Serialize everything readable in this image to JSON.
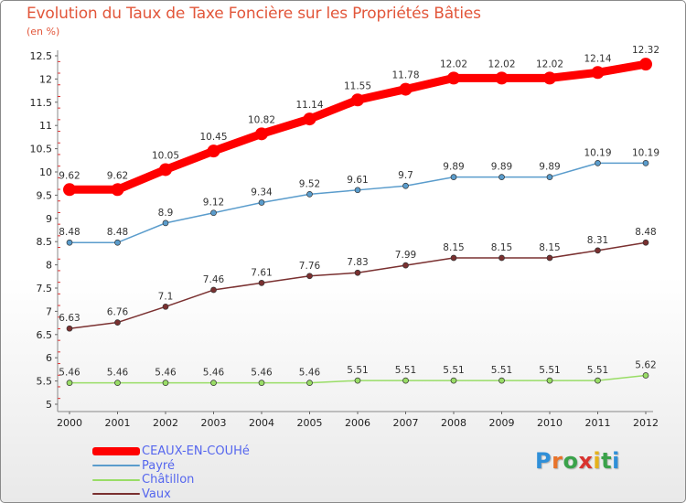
{
  "header": {
    "title": "Evolution du Taux de Taxe Foncière sur les Propriétés Bâties",
    "unit": "(en %)"
  },
  "brand": {
    "letters": [
      "P",
      "r",
      "o",
      "x",
      "i",
      "t",
      "i"
    ],
    "colors": [
      "#2f8fd8",
      "#e8732a",
      "#3aa24a",
      "#d9322e",
      "#e5b21c",
      "#3aa24a",
      "#2f8fd8"
    ]
  },
  "chart_data": {
    "type": "line",
    "title": "Evolution du Taux de Taxe Foncière sur les Propriétés Bâties",
    "ylabel": "(en %)",
    "xlabel": "",
    "x": [
      "2000",
      "2001",
      "2002",
      "2003",
      "2004",
      "2005",
      "2006",
      "2007",
      "2008",
      "2009",
      "2010",
      "2011",
      "2012"
    ],
    "y_ticks": [
      "5",
      "5.5",
      "6",
      "6.5",
      "7",
      "7.5",
      "8",
      "8.5",
      "9",
      "9.5",
      "10",
      "10.5",
      "11",
      "11.5",
      "12",
      "12.5"
    ],
    "ylim": [
      5,
      12.5
    ],
    "grid": false,
    "legend_position": "bottom-left",
    "series": [
      {
        "name": "CEAUX-EN-COUHé",
        "color": "#ff0000",
        "values": [
          9.62,
          9.62,
          10.05,
          10.45,
          10.82,
          11.14,
          11.55,
          11.78,
          12.02,
          12.02,
          12.02,
          12.14,
          12.32
        ],
        "labels": [
          "9.62",
          "9.62",
          "10.05",
          "10.45",
          "10.82",
          "11.14",
          "11.55",
          "11.78",
          "12.02",
          "12.02",
          "12.02",
          "12.14",
          "12.32"
        ]
      },
      {
        "name": "Payré",
        "color": "#5a9ccc",
        "values": [
          8.48,
          8.48,
          8.9,
          9.12,
          9.34,
          9.52,
          9.61,
          9.7,
          9.89,
          9.89,
          9.89,
          10.19,
          10.19
        ],
        "labels": [
          "8.48",
          "8.48",
          "8.9",
          "9.12",
          "9.34",
          "9.52",
          "9.61",
          "9.7",
          "9.89",
          "9.89",
          "9.89",
          "10.19",
          "10.19"
        ]
      },
      {
        "name": "Châtillon",
        "color": "#99dd66",
        "values": [
          5.46,
          5.46,
          5.46,
          5.46,
          5.46,
          5.46,
          5.51,
          5.51,
          5.51,
          5.51,
          5.51,
          5.51,
          5.62
        ],
        "labels": [
          "5.46",
          "5.46",
          "5.46",
          "5.46",
          "5.46",
          "5.46",
          "5.51",
          "5.51",
          "5.51",
          "5.51",
          "5.51",
          "5.51",
          "5.62"
        ]
      },
      {
        "name": "Vaux",
        "color": "#7a3030",
        "values": [
          6.63,
          6.76,
          7.1,
          7.46,
          7.61,
          7.76,
          7.83,
          7.99,
          8.15,
          8.15,
          8.15,
          8.31,
          8.48
        ],
        "labels": [
          "6.63",
          "6.76",
          "7.1",
          "7.46",
          "7.61",
          "7.76",
          "7.83",
          "7.99",
          "8.15",
          "8.15",
          "8.15",
          "8.31",
          "8.48"
        ]
      }
    ]
  }
}
